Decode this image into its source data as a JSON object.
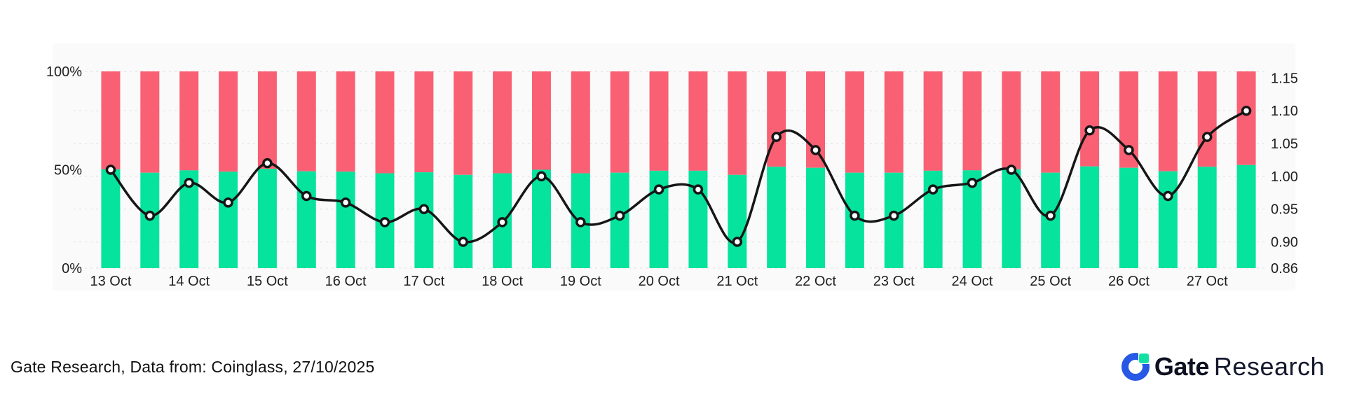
{
  "chart_data": {
    "type": "bar",
    "subtype": "100%-stacked long/short bars with smoothed ratio line overlay, dual y-axis",
    "title": "",
    "x_labels": [
      "13 Oct",
      "14 Oct",
      "15 Oct",
      "16 Oct",
      "17 Oct",
      "18 Oct",
      "19 Oct",
      "20 Oct",
      "21 Oct",
      "22 Oct",
      "23 Oct",
      "24 Oct",
      "25 Oct",
      "26 Oct",
      "27 Oct"
    ],
    "bars_per_label": 2,
    "series": [
      {
        "name": "green-share-pct",
        "type": "bar",
        "stack": "percent",
        "color": "#05E39D",
        "y_axis": "left",
        "values": [
          50.2,
          48.5,
          49.7,
          49.0,
          50.5,
          49.2,
          49.0,
          48.2,
          48.7,
          47.4,
          48.2,
          50.0,
          48.2,
          48.5,
          49.5,
          49.5,
          47.4,
          51.5,
          51.0,
          48.5,
          48.5,
          49.5,
          49.7,
          50.2,
          48.5,
          51.7,
          51.0,
          49.2,
          51.5,
          52.4
        ]
      },
      {
        "name": "red-share-pct",
        "type": "bar",
        "stack": "percent",
        "color": "#F96073",
        "y_axis": "left",
        "values": [
          49.8,
          51.5,
          50.3,
          51.0,
          49.5,
          50.8,
          51.0,
          51.8,
          51.3,
          52.6,
          51.8,
          50.0,
          51.8,
          51.5,
          50.5,
          50.5,
          52.6,
          48.5,
          49.0,
          51.5,
          51.5,
          50.5,
          50.3,
          49.8,
          51.5,
          48.3,
          49.0,
          50.8,
          48.5,
          47.6
        ]
      },
      {
        "name": "ratio-line",
        "type": "line",
        "smooth": true,
        "color": "#161616",
        "marker": "white-circle",
        "y_axis": "right",
        "values": [
          1.01,
          0.94,
          0.99,
          0.96,
          1.02,
          0.97,
          0.96,
          0.93,
          0.95,
          0.9,
          0.93,
          1.0,
          0.93,
          0.94,
          0.98,
          0.98,
          0.9,
          1.06,
          1.04,
          0.94,
          0.94,
          0.98,
          0.99,
          1.01,
          0.94,
          1.07,
          1.04,
          0.97,
          1.06,
          1.1
        ]
      }
    ],
    "left_axis": {
      "tick_labels": [
        "100%",
        "50%",
        "0%"
      ],
      "tick_values": [
        100,
        50,
        0
      ],
      "range": [
        0,
        100
      ]
    },
    "right_axis": {
      "tick_labels": [
        "1.15",
        "1.10",
        "1.05",
        "1.00",
        "0.95",
        "0.90",
        "0.86"
      ],
      "tick_values": [
        1.15,
        1.1,
        1.05,
        1.0,
        0.95,
        0.9,
        0.86
      ],
      "range": [
        0.86,
        1.16
      ]
    },
    "grid": {
      "show": true,
      "style": "dashed",
      "color": "#e8e8e8"
    },
    "legend": {
      "show": false
    },
    "plot_background": "#fafafa"
  },
  "footer": {
    "source": "Gate Research, Data from: Coinglass, 27/10/2025",
    "logo_primary": "Gate",
    "logo_secondary": "Research"
  }
}
